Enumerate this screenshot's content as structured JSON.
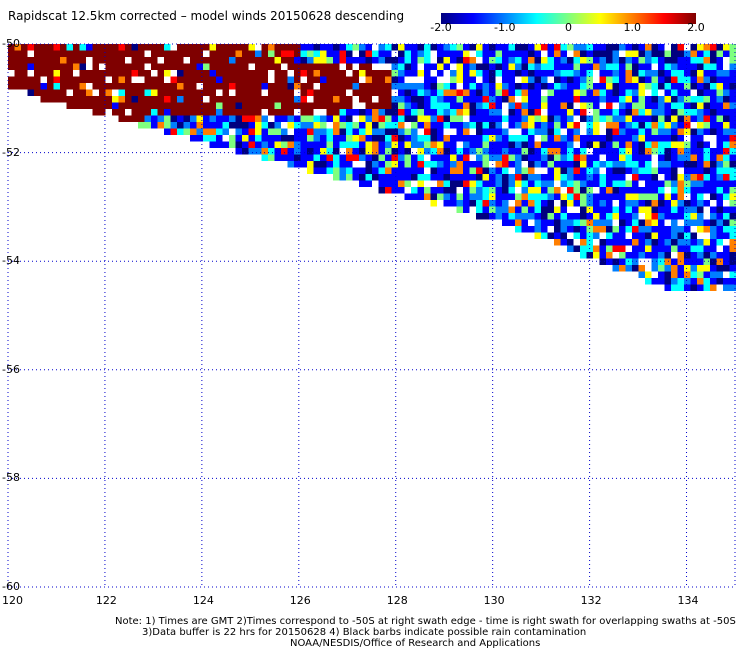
{
  "title": "Rapidscat 12.5km corrected – model winds 20150628 descending",
  "colorbar": {
    "colors": [
      "#00007f",
      "#0000ff",
      "#007fff",
      "#00ffff",
      "#7fff7f",
      "#ffff00",
      "#ff7f00",
      "#ff0000",
      "#7f0000"
    ],
    "ticks": [
      {
        "label": "-2.0",
        "value": -2.0
      },
      {
        "label": "-1.0",
        "value": -1.0
      },
      {
        "label": "0",
        "value": 0.0
      },
      {
        "label": "1.0",
        "value": 1.0
      },
      {
        "label": "2.0",
        "value": 2.0
      }
    ],
    "range": [
      -2.0,
      2.0
    ]
  },
  "map": {
    "lon_range": [
      120,
      135
    ],
    "lat_range": [
      -50,
      -60
    ],
    "lon_ticks": [
      {
        "label": "120",
        "value": 120
      },
      {
        "label": "122",
        "value": 122
      },
      {
        "label": "124",
        "value": 124
      },
      {
        "label": "126",
        "value": 126
      },
      {
        "label": "128",
        "value": 128
      },
      {
        "label": "130",
        "value": 130
      },
      {
        "label": "132",
        "value": 132
      },
      {
        "label": "134",
        "value": 134
      }
    ],
    "lat_ticks": [
      {
        "label": "-50",
        "value": -50
      },
      {
        "label": "-52",
        "value": -52
      },
      {
        "label": "-54",
        "value": -54
      },
      {
        "label": "-56",
        "value": -56
      },
      {
        "label": "-58",
        "value": -58
      },
      {
        "label": "-60",
        "value": -60
      }
    ],
    "grid_color": "#0000cc"
  },
  "notes": {
    "line1": "Note: 1) Times are GMT 2)Times correspond to -50S at right swath edge - time is right swath for overlapping swaths at -50S",
    "line2": "3)Data buffer is 22 hrs for 20150628 4) Black barbs indicate possible rain contamination",
    "line3": "NOAA/NESDIS/Office of Research and Applications"
  }
}
